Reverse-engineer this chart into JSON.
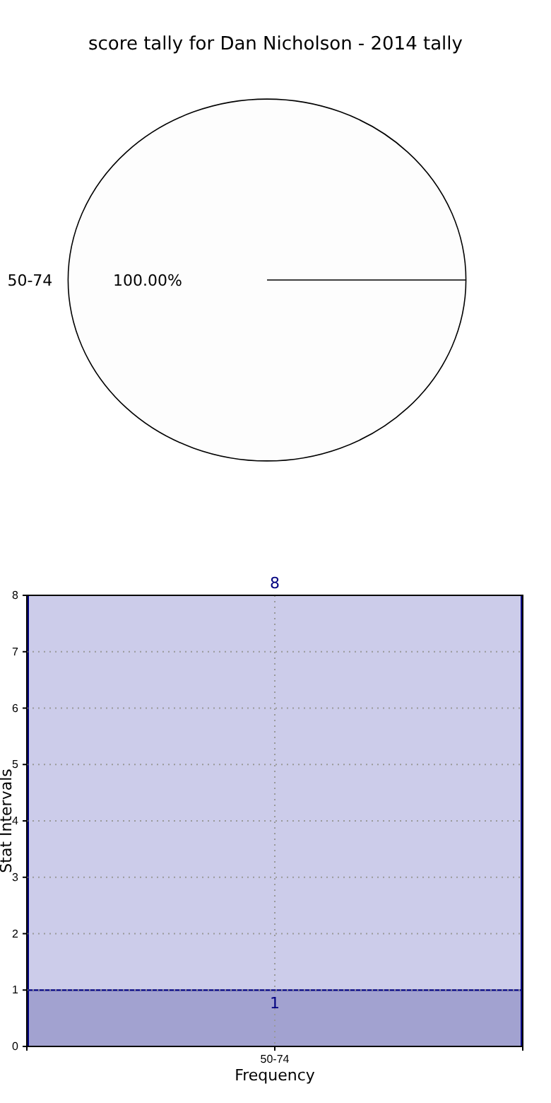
{
  "chart_data": [
    {
      "type": "pie",
      "title": "score tally for Dan Nicholson - 2014 tally",
      "categories": [
        "50-74"
      ],
      "values": [
        100
      ],
      "colors": [
        "#fdfdfd"
      ],
      "value_labels": [
        "100.00%"
      ]
    },
    {
      "type": "bar",
      "xlabel": "Frequency",
      "ylabel": "Stat Intervals",
      "categories": [
        "50-74"
      ],
      "stacked": true,
      "series": [
        {
          "color": "#a2a2d0",
          "values": [
            1
          ],
          "value_labels": [
            "1"
          ]
        },
        {
          "color": "#ccccea",
          "values": [
            7
          ],
          "value_labels": [
            null
          ]
        }
      ],
      "totals": [
        "8"
      ],
      "ylim": [
        0,
        8
      ],
      "yticks": [
        0,
        1,
        2,
        3,
        4,
        5,
        6,
        7,
        8
      ],
      "grid": true
    }
  ]
}
